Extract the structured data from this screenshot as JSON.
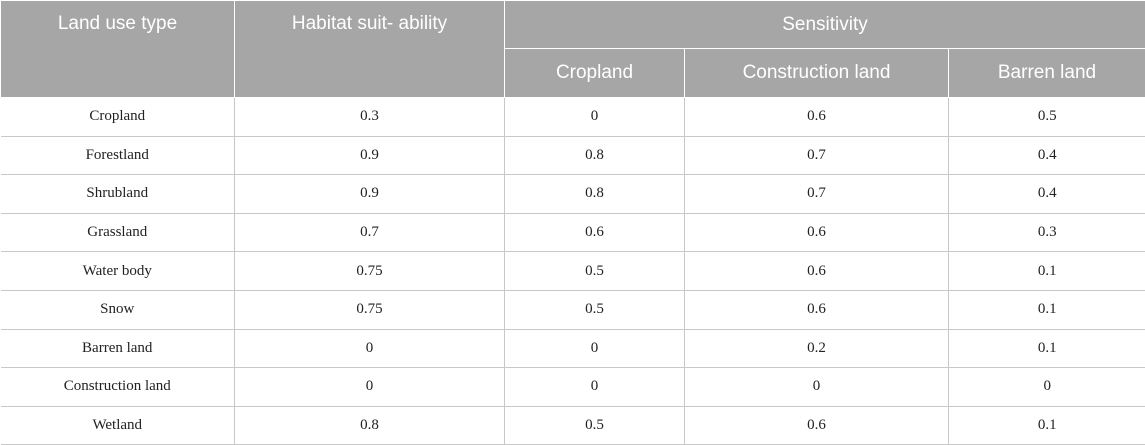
{
  "header": {
    "land_use_type": "Land use type",
    "habitat_suitability": "Habitat suit- ability",
    "sensitivity": "Sensitivity",
    "sub": [
      "Cropland",
      "Construction land",
      "Barren land"
    ]
  },
  "rows": [
    {
      "type": "Cropland",
      "habitat": "0.3",
      "cropland": "0",
      "construction": "0.6",
      "barren": "0.5"
    },
    {
      "type": "Forestland",
      "habitat": "0.9",
      "cropland": "0.8",
      "construction": "0.7",
      "barren": "0.4"
    },
    {
      "type": "Shrubland",
      "habitat": "0.9",
      "cropland": "0.8",
      "construction": "0.7",
      "barren": "0.4"
    },
    {
      "type": "Grassland",
      "habitat": "0.7",
      "cropland": "0.6",
      "construction": "0.6",
      "barren": "0.3"
    },
    {
      "type": "Water body",
      "habitat": "0.75",
      "cropland": "0.5",
      "construction": "0.6",
      "barren": "0.1"
    },
    {
      "type": "Snow",
      "habitat": "0.75",
      "cropland": "0.5",
      "construction": "0.6",
      "barren": "0.1"
    },
    {
      "type": "Barren land",
      "habitat": "0",
      "cropland": "0",
      "construction": "0.2",
      "barren": "0.1"
    },
    {
      "type": "Construction land",
      "habitat": "0",
      "cropland": "0",
      "construction": "0",
      "barren": "0"
    },
    {
      "type": "Wetland",
      "habitat": "0.8",
      "cropland": "0.5",
      "construction": "0.6",
      "barren": "0.1"
    }
  ]
}
